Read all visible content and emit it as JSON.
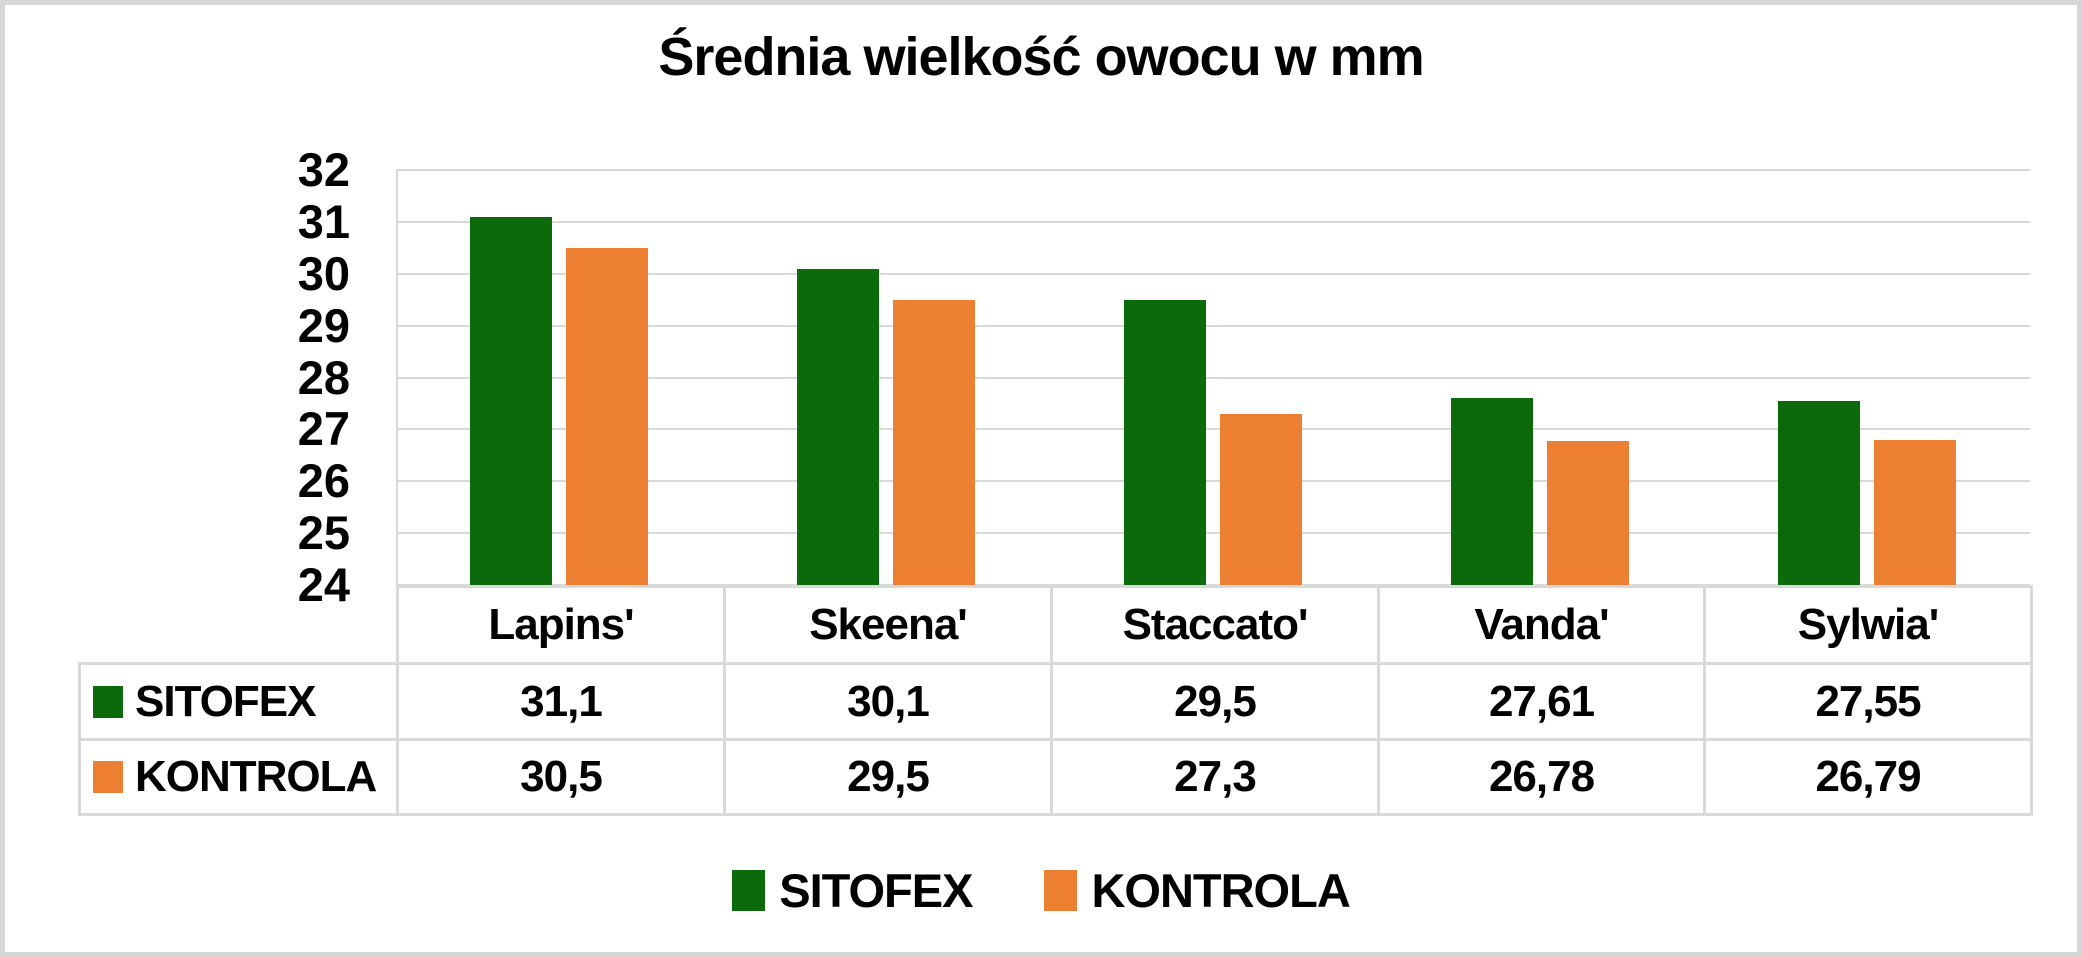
{
  "title": "Średnia wielkość owocu w mm",
  "colors": {
    "sitofex": "#0B6B0B",
    "kontrola": "#EC7F31",
    "gridline": "#D9D9D9",
    "frame": "#D6D6D6",
    "text": "#000000"
  },
  "chart_data": {
    "type": "bar",
    "title": "Średnia wielkość owocu w mm",
    "categories": [
      "Lapins'",
      "Skeena'",
      "Staccato'",
      "Vanda'",
      "Sylwia'"
    ],
    "series": [
      {
        "name": "SITOFEX",
        "color": "#0B6B0B",
        "values": [
          31.1,
          30.1,
          29.5,
          27.61,
          27.55
        ],
        "labels": [
          "31,1",
          "30,1",
          "29,5",
          "27,61",
          "27,55"
        ]
      },
      {
        "name": "KONTROLA",
        "color": "#EC7F31",
        "values": [
          30.5,
          29.5,
          27.3,
          26.78,
          26.79
        ],
        "labels": [
          "30,5",
          "29,5",
          "27,3",
          "26,78",
          "26,79"
        ]
      }
    ],
    "xlabel": "",
    "ylabel": "",
    "ylim": [
      24,
      32
    ],
    "ytick_step": 1,
    "ytick_labels": [
      "24",
      "25",
      "26",
      "27",
      "28",
      "29",
      "30",
      "31",
      "32"
    ],
    "grid": true,
    "legend_position": "bottom",
    "data_table_shown": true
  }
}
